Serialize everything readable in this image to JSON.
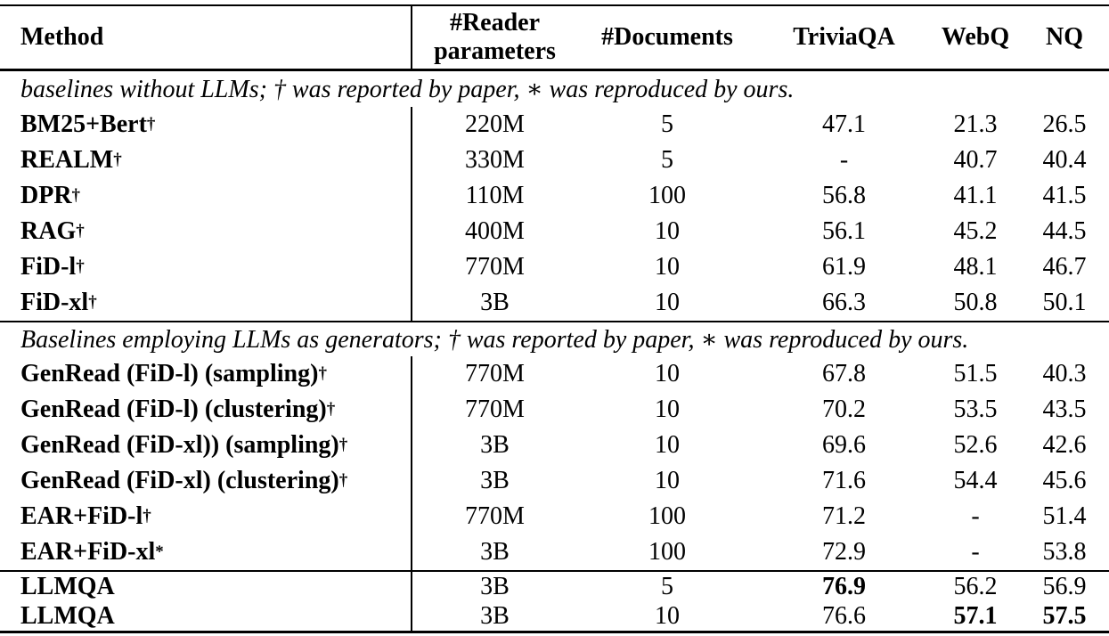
{
  "table": {
    "columns": [
      {
        "key": "method",
        "label": "Method"
      },
      {
        "key": "params",
        "label": "#Reader parameters"
      },
      {
        "key": "docs",
        "label": "#Documents"
      },
      {
        "key": "triviaqa",
        "label": "TriviaQA"
      },
      {
        "key": "webq",
        "label": "WebQ"
      },
      {
        "key": "nq",
        "label": "NQ"
      }
    ],
    "sections": [
      {
        "note": "baselines without LLMs; † was reported by paper, ∗ was reproduced by ours.",
        "rule_after": "mid",
        "rows": [
          {
            "method": "BM25+Bert",
            "sup": "†",
            "params": "220M",
            "docs": "5",
            "triviaqa": "47.1",
            "webq": "21.3",
            "nq": "26.5",
            "bold": []
          },
          {
            "method": "REALM",
            "sup": "†",
            "params": "330M",
            "docs": "5",
            "triviaqa": "-",
            "webq": "40.7",
            "nq": "40.4",
            "bold": []
          },
          {
            "method": "DPR",
            "sup": "†",
            "params": "110M",
            "docs": "100",
            "triviaqa": "56.8",
            "webq": "41.1",
            "nq": "41.5",
            "bold": []
          },
          {
            "method": "RAG",
            "sup": "†",
            "params": "400M",
            "docs": "10",
            "triviaqa": "56.1",
            "webq": "45.2",
            "nq": "44.5",
            "bold": []
          },
          {
            "method": "FiD-l",
            "sup": "†",
            "params": "770M",
            "docs": "10",
            "triviaqa": "61.9",
            "webq": "48.1",
            "nq": "46.7",
            "bold": []
          },
          {
            "method": "FiD-xl",
            "sup": "†",
            "params": "3B",
            "docs": "10",
            "triviaqa": "66.3",
            "webq": "50.8",
            "nq": "50.1",
            "bold": []
          }
        ]
      },
      {
        "note": "Baselines employing LLMs as generators; † was reported by paper, ∗ was reproduced by ours.",
        "rule_after": "prefin",
        "rows": [
          {
            "method": "GenRead (FiD-l) (sampling)",
            "sup": "†",
            "params": "770M",
            "docs": "10",
            "triviaqa": "67.8",
            "webq": "51.5",
            "nq": "40.3",
            "bold": []
          },
          {
            "method": "GenRead (FiD-l) (clustering)",
            "sup": "†",
            "params": "770M",
            "docs": "10",
            "triviaqa": "70.2",
            "webq": "53.5",
            "nq": "43.5",
            "bold": []
          },
          {
            "method": "GenRead (FiD-xl)) (sampling)",
            "sup": "†",
            "params": "3B",
            "docs": "10",
            "triviaqa": "69.6",
            "webq": "52.6",
            "nq": "42.6",
            "bold": []
          },
          {
            "method": "GenRead (FiD-xl) (clustering)",
            "sup": "†",
            "params": "3B",
            "docs": "10",
            "triviaqa": "71.6",
            "webq": "54.4",
            "nq": "45.6",
            "bold": []
          },
          {
            "method": "EAR+FiD-l",
            "sup": "†",
            "params": "770M",
            "docs": "100",
            "triviaqa": "71.2",
            "webq": "-",
            "nq": "51.4",
            "bold": []
          },
          {
            "method": "EAR+FiD-xl",
            "sup": "*",
            "params": "3B",
            "docs": "100",
            "triviaqa": "72.9",
            "webq": "-",
            "nq": "53.8",
            "bold": []
          }
        ]
      },
      {
        "note": null,
        "compact": true,
        "rule_after": null,
        "rows": [
          {
            "method": "LLMQA",
            "sup": null,
            "params": "3B",
            "docs": "5",
            "triviaqa": "76.9",
            "webq": "56.2",
            "nq": "56.9",
            "bold": [
              "triviaqa"
            ]
          },
          {
            "method": "LLMQA",
            "sup": null,
            "params": "3B",
            "docs": "10",
            "triviaqa": "76.6",
            "webq": "57.1",
            "nq": "57.5",
            "bold": [
              "webq",
              "nq"
            ]
          }
        ]
      }
    ]
  }
}
